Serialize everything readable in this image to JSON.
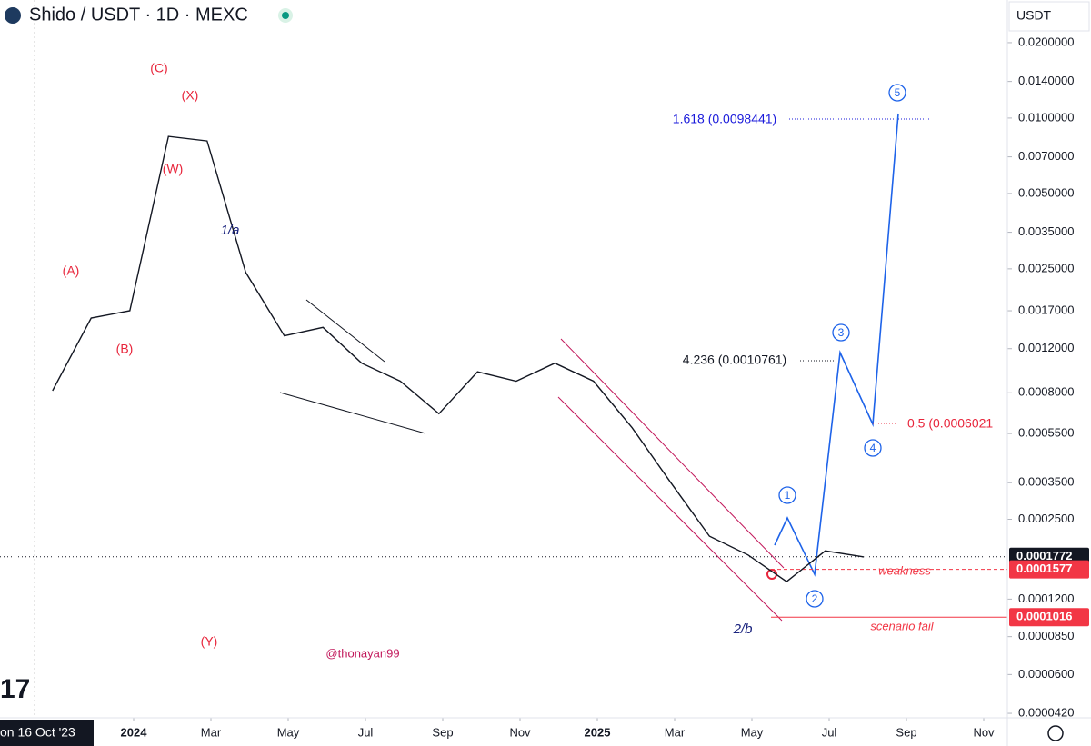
{
  "chart_data": {
    "type": "line",
    "title": "Shido / USDT · 1D · MEXC",
    "currency": "USDT",
    "watermark": "@thonayan99",
    "start_label": "on 16 Oct '23",
    "log_scale": true,
    "series": [
      {
        "name": "Shido / USDT",
        "color": "#131722",
        "values": [
          0.000815,
          0.00159,
          0.0017,
          0.00845,
          0.0081,
          0.00242,
          0.00135,
          0.00146,
          0.00105,
          0.00089,
          0.00066,
          0.00097,
          0.00089,
          0.00105,
          0.00089,
          0.00058,
          0.00035,
          0.000214,
          0.00018,
          0.000141,
          0.000187,
          0.000177
        ]
      }
    ],
    "x": [
      "2023-10",
      "2023-11",
      "2023-12",
      "2024-01",
      "2024-02",
      "2024-03",
      "2024-04",
      "2024-05",
      "2024-06",
      "2024-07",
      "2024-08",
      "2024-09",
      "2024-10",
      "2024-11",
      "2024-12",
      "2025-01",
      "2025-02",
      "2025-03",
      "2025-04",
      "2025-05",
      "2025-06",
      "2025-07"
    ],
    "xticks": [
      {
        "value": "2024-01",
        "label": "2024"
      },
      {
        "value": "2024-03",
        "label": "Mar"
      },
      {
        "value": "2024-05",
        "label": "May"
      },
      {
        "value": "2024-07",
        "label": "Jul"
      },
      {
        "value": "2024-09",
        "label": "Sep"
      },
      {
        "value": "2024-11",
        "label": "Nov"
      },
      {
        "value": "2025-01",
        "label": "2025"
      },
      {
        "value": "2025-03",
        "label": "Mar"
      },
      {
        "value": "2025-05",
        "label": "May"
      },
      {
        "value": "2025-07",
        "label": "Jul"
      },
      {
        "value": "2025-09",
        "label": "Sep"
      },
      {
        "value": "2025-11",
        "label": "Nov"
      }
    ],
    "ylim": [
      4.03e-05,
      0.0296
    ],
    "yticks": [
      {
        "value": 0.02,
        "label": "0.0200000"
      },
      {
        "value": 0.014,
        "label": "0.0140000"
      },
      {
        "value": 0.01,
        "label": "0.0100000"
      },
      {
        "value": 0.007,
        "label": "0.0070000"
      },
      {
        "value": 0.005,
        "label": "0.0050000"
      },
      {
        "value": 0.0035,
        "label": "0.0035000"
      },
      {
        "value": 0.0025,
        "label": "0.0025000"
      },
      {
        "value": 0.0017,
        "label": "0.0017000"
      },
      {
        "value": 0.0012,
        "label": "0.0012000"
      },
      {
        "value": 0.0008,
        "label": "0.0008000"
      },
      {
        "value": 0.00055,
        "label": "0.0005500"
      },
      {
        "value": 0.00035,
        "label": "0.0003500"
      },
      {
        "value": 0.00025,
        "label": "0.0002500"
      },
      {
        "value": 0.00012,
        "label": "0.0001200"
      },
      {
        "value": 8.5e-05,
        "label": "0.0000850"
      },
      {
        "value": 6e-05,
        "label": "0.0000600"
      },
      {
        "value": 4.2e-05,
        "label": "0.0000420"
      }
    ],
    "price_levels": [
      {
        "price": 0.0001772,
        "color": "#131722"
      },
      {
        "price": 0.0001577,
        "note": "weakness",
        "color": "#f23645"
      },
      {
        "price": 0.0001016,
        "note": "scenario fail",
        "color": "#f23645"
      }
    ],
    "annotations": [
      {
        "text": "(C)",
        "color": "#e8253b"
      },
      {
        "text": "(X)",
        "color": "#e8253b"
      },
      {
        "text": "(W)",
        "color": "#e8253b"
      },
      {
        "text": "(A)",
        "color": "#e8253b"
      },
      {
        "text": "(B)",
        "color": "#e8253b"
      },
      {
        "text": "(Y)",
        "color": "#e8253b"
      },
      {
        "text": "1/a",
        "color": "#1a237e"
      },
      {
        "text": "2/b",
        "color": "#1a237e"
      },
      {
        "text": "1",
        "color": "#1e63e9",
        "shape": "circle"
      },
      {
        "text": "2",
        "color": "#1e63e9",
        "shape": "circle"
      },
      {
        "text": "3",
        "color": "#1e63e9",
        "shape": "circle"
      },
      {
        "text": "4",
        "color": "#1e63e9",
        "shape": "circle"
      },
      {
        "text": "5",
        "color": "#1e63e9",
        "shape": "circle"
      },
      {
        "text": "1.618 (0.0098441)",
        "color": "#1a1adb"
      },
      {
        "text": "4.236 (0.0010761)",
        "color": "#131722"
      },
      {
        "text": "0.5 (0.0006021",
        "color": "#e8253b"
      }
    ]
  }
}
